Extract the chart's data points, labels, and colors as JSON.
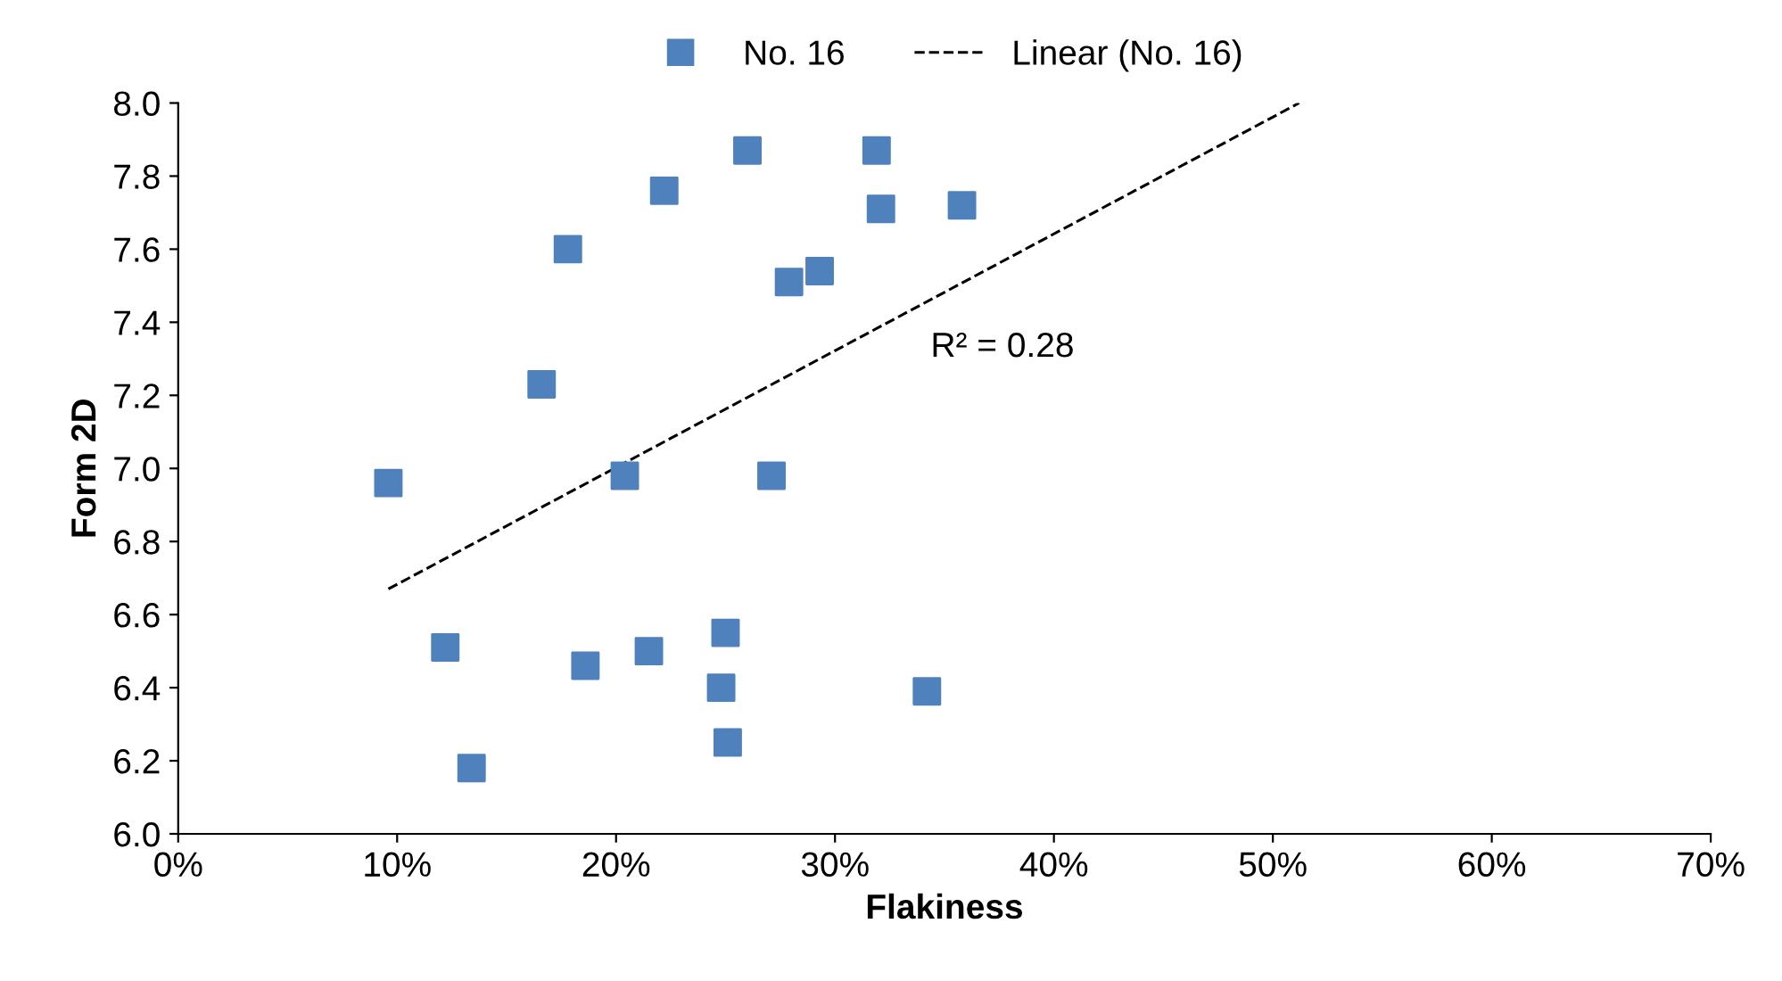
{
  "chart_data": {
    "type": "scatter",
    "xlabel": "Flakiness",
    "ylabel": "Form 2D",
    "series": [
      {
        "name": "No. 16",
        "color": "#4f81bd",
        "marker": "square",
        "x": [
          9.6,
          12.2,
          13.4,
          16.6,
          17.8,
          18.6,
          20.4,
          21.5,
          22.2,
          24.8,
          25.0,
          25.1,
          26.0,
          27.1,
          27.9,
          29.3,
          31.9,
          32.1,
          34.2,
          35.8
        ],
        "values": [
          6.96,
          6.51,
          6.18,
          7.23,
          7.6,
          6.46,
          6.98,
          6.5,
          7.76,
          6.4,
          6.55,
          6.25,
          7.87,
          6.98,
          7.51,
          7.54,
          7.87,
          7.71,
          6.39,
          7.72
        ]
      },
      {
        "name": "Linear (No. 16)",
        "type": "line",
        "color": "#000000",
        "line_style": "dashed",
        "marker": "none",
        "x": [
          9.6,
          51.2
        ],
        "values": [
          6.67,
          8.0
        ]
      }
    ],
    "annotations": [
      "R² = 0.28"
    ],
    "xlim": [
      0,
      70
    ],
    "xticks": [
      {
        "value": 0,
        "label": "0%"
      },
      {
        "value": 10,
        "label": "10%"
      },
      {
        "value": 20,
        "label": "20%"
      },
      {
        "value": 30,
        "label": "30%"
      },
      {
        "value": 40,
        "label": "40%"
      },
      {
        "value": 50,
        "label": "50%"
      },
      {
        "value": 60,
        "label": "60%"
      },
      {
        "value": 70,
        "label": "70%"
      }
    ],
    "ylim": [
      6.0,
      8.0
    ],
    "yticks": [
      {
        "value": 6.0,
        "label": "6.0"
      },
      {
        "value": 6.2,
        "label": "6.2"
      },
      {
        "value": 6.4,
        "label": "6.4"
      },
      {
        "value": 6.6,
        "label": "6.6"
      },
      {
        "value": 6.8,
        "label": "6.8"
      },
      {
        "value": 7.0,
        "label": "7.0"
      },
      {
        "value": 7.2,
        "label": "7.2"
      },
      {
        "value": 7.4,
        "label": "7.4"
      },
      {
        "value": 7.6,
        "label": "7.6"
      },
      {
        "value": 7.8,
        "label": "7.8"
      },
      {
        "value": 8.0,
        "label": "8.0"
      }
    ],
    "grid": false,
    "legend": "top"
  }
}
